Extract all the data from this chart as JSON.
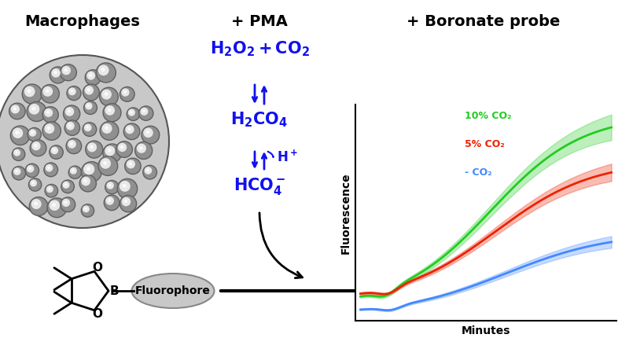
{
  "bg_color": "#ffffff",
  "header_macrophages": "Macrophages",
  "header_pma": "+ PMA",
  "header_boronate": "+ Boronate probe",
  "legend_10": "10% CO₂",
  "legend_5": "5% CO₂",
  "legend_neg": "- CO₂",
  "ylabel": "Fluorescence",
  "xlabel": "Minutes",
  "color_green": "#22cc22",
  "color_red": "#ee2200",
  "color_blue": "#4488ff",
  "color_chem": "#1111ee",
  "fluorophore_active_color": "#00ff00",
  "fluorophore_text": "Fluorophore",
  "cell_bg": "#b0b0b0",
  "cell_color": "#909090",
  "cell_highlight": "#e8e8e8",
  "cell_dark": "#606060"
}
